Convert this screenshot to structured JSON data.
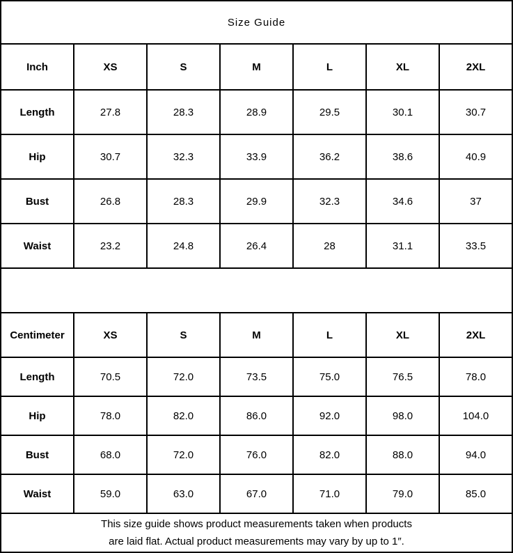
{
  "title": "Size Guide",
  "colors": {
    "border": "#000000",
    "background": "#ffffff",
    "text": "#000000"
  },
  "inch": {
    "unit_label": "Inch",
    "columns": [
      "XS",
      "S",
      "M",
      "L",
      "XL",
      "2XL"
    ],
    "rows": [
      {
        "label": "Length",
        "values": [
          "27.8",
          "28.3",
          "28.9",
          "29.5",
          "30.1",
          "30.7"
        ]
      },
      {
        "label": "Hip",
        "values": [
          "30.7",
          "32.3",
          "33.9",
          "36.2",
          "38.6",
          "40.9"
        ]
      },
      {
        "label": "Bust",
        "values": [
          "26.8",
          "28.3",
          "29.9",
          "32.3",
          "34.6",
          "37"
        ]
      },
      {
        "label": "Waist",
        "values": [
          "23.2",
          "24.8",
          "26.4",
          "28",
          "31.1",
          "33.5"
        ]
      }
    ]
  },
  "cm": {
    "unit_label": "Centimeter",
    "columns": [
      "XS",
      "S",
      "M",
      "L",
      "XL",
      "2XL"
    ],
    "rows": [
      {
        "label": "Length",
        "values": [
          "70.5",
          "72.0",
          "73.5",
          "75.0",
          "76.5",
          "78.0"
        ]
      },
      {
        "label": "Hip",
        "values": [
          "78.0",
          "82.0",
          "86.0",
          "92.0",
          "98.0",
          "104.0"
        ]
      },
      {
        "label": "Bust",
        "values": [
          "68.0",
          "72.0",
          "76.0",
          "82.0",
          "88.0",
          "94.0"
        ]
      },
      {
        "label": "Waist",
        "values": [
          "59.0",
          "63.0",
          "67.0",
          "71.0",
          "79.0",
          "85.0"
        ]
      }
    ]
  },
  "footer": {
    "line1": "This size guide shows product measurements taken when products",
    "line2": "are laid flat. Actual product measurements may vary by up to 1″."
  }
}
